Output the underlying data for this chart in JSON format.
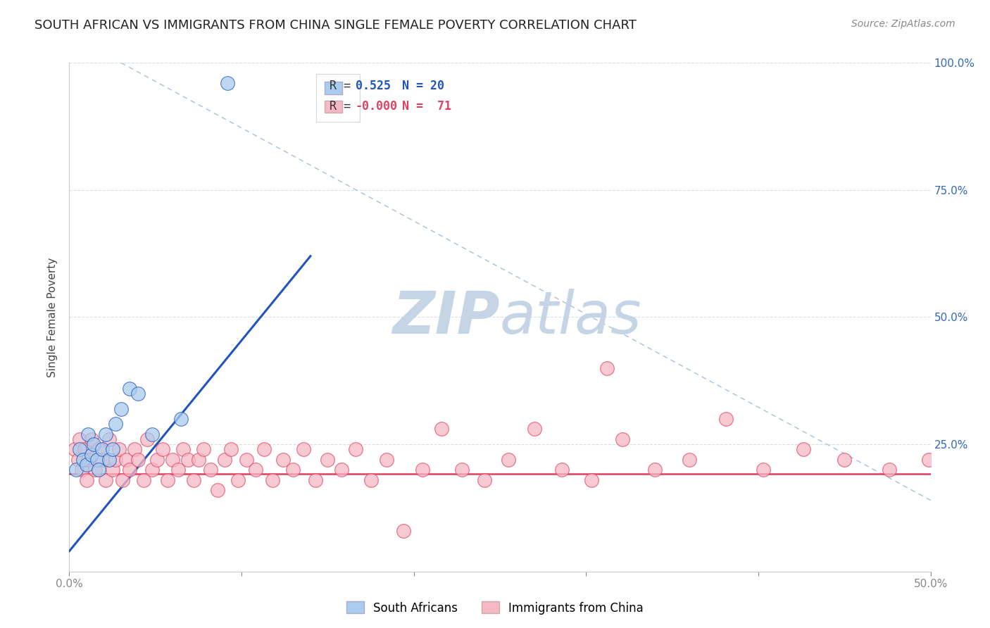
{
  "title": "SOUTH AFRICAN VS IMMIGRANTS FROM CHINA SINGLE FEMALE POVERTY CORRELATION CHART",
  "source": "Source: ZipAtlas.com",
  "ylabel": "Single Female Poverty",
  "xlim": [
    0.0,
    0.5
  ],
  "ylim": [
    0.0,
    1.0
  ],
  "blue_color": "#aaccee",
  "pink_color": "#f5b8c4",
  "trend_blue_color": "#2255bb",
  "trend_pink_color": "#e04060",
  "dashed_line_color": "#a8c0d8",
  "grid_color": "#d8dfe8",
  "watermark_zip_color": "#c5d5e5",
  "watermark_atlas_color": "#c5d5e5",
  "south_african_x": [
    0.004,
    0.006,
    0.008,
    0.01,
    0.011,
    0.013,
    0.014,
    0.016,
    0.017,
    0.019,
    0.021,
    0.023,
    0.025,
    0.027,
    0.03,
    0.035,
    0.04,
    0.048,
    0.065,
    0.092
  ],
  "south_african_y": [
    0.2,
    0.24,
    0.22,
    0.21,
    0.27,
    0.23,
    0.25,
    0.22,
    0.2,
    0.24,
    0.27,
    0.22,
    0.24,
    0.29,
    0.32,
    0.36,
    0.35,
    0.27,
    0.3,
    0.96
  ],
  "china_x": [
    0.003,
    0.005,
    0.006,
    0.007,
    0.009,
    0.01,
    0.011,
    0.013,
    0.015,
    0.017,
    0.019,
    0.021,
    0.023,
    0.025,
    0.027,
    0.029,
    0.031,
    0.033,
    0.035,
    0.038,
    0.04,
    0.043,
    0.045,
    0.048,
    0.051,
    0.054,
    0.057,
    0.06,
    0.063,
    0.066,
    0.069,
    0.072,
    0.075,
    0.078,
    0.082,
    0.086,
    0.09,
    0.094,
    0.098,
    0.103,
    0.108,
    0.113,
    0.118,
    0.124,
    0.13,
    0.136,
    0.143,
    0.15,
    0.158,
    0.166,
    0.175,
    0.184,
    0.194,
    0.205,
    0.216,
    0.228,
    0.241,
    0.255,
    0.27,
    0.286,
    0.303,
    0.321,
    0.34,
    0.36,
    0.381,
    0.403,
    0.426,
    0.45,
    0.476,
    0.499,
    0.312
  ],
  "china_y": [
    0.24,
    0.22,
    0.26,
    0.2,
    0.24,
    0.18,
    0.22,
    0.26,
    0.2,
    0.24,
    0.22,
    0.18,
    0.26,
    0.2,
    0.22,
    0.24,
    0.18,
    0.22,
    0.2,
    0.24,
    0.22,
    0.18,
    0.26,
    0.2,
    0.22,
    0.24,
    0.18,
    0.22,
    0.2,
    0.24,
    0.22,
    0.18,
    0.22,
    0.24,
    0.2,
    0.16,
    0.22,
    0.24,
    0.18,
    0.22,
    0.2,
    0.24,
    0.18,
    0.22,
    0.2,
    0.24,
    0.18,
    0.22,
    0.2,
    0.24,
    0.18,
    0.22,
    0.08,
    0.2,
    0.28,
    0.2,
    0.18,
    0.22,
    0.28,
    0.2,
    0.18,
    0.26,
    0.2,
    0.22,
    0.3,
    0.2,
    0.24,
    0.22,
    0.2,
    0.22,
    0.4
  ],
  "blue_trend_x": [
    0.0,
    0.14
  ],
  "blue_trend_y": [
    0.04,
    0.62
  ],
  "pink_trend_y": 0.192,
  "dashed_line_x": [
    0.03,
    0.5
  ],
  "dashed_line_y": [
    1.0,
    0.14
  ],
  "legend_r_blue": "R =",
  "legend_v_blue": "0.525",
  "legend_n_blue": "N = 20",
  "legend_r_pink": "R =",
  "legend_v_pink": "-0.000",
  "legend_n_pink": "N =  71"
}
